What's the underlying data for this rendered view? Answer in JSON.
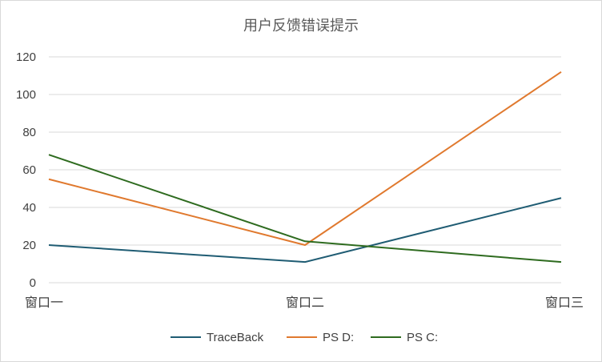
{
  "chart_data": {
    "type": "line",
    "title": "用户反馈错误提示",
    "categories": [
      "窗口一",
      "窗口二",
      "窗口三"
    ],
    "series": [
      {
        "name": "TraceBack",
        "values": [
          20,
          11,
          45
        ],
        "color": "#1f5c73"
      },
      {
        "name": "PS D:",
        "values": [
          55,
          20,
          112
        ],
        "color": "#e0792e"
      },
      {
        "name": "PS C:",
        "values": [
          68,
          22,
          11
        ],
        "color": "#2e6b1f"
      }
    ],
    "ylim": [
      0,
      120
    ],
    "yticks": [
      0,
      20,
      40,
      60,
      80,
      100,
      120
    ],
    "grid": true,
    "legend": "bottom"
  }
}
